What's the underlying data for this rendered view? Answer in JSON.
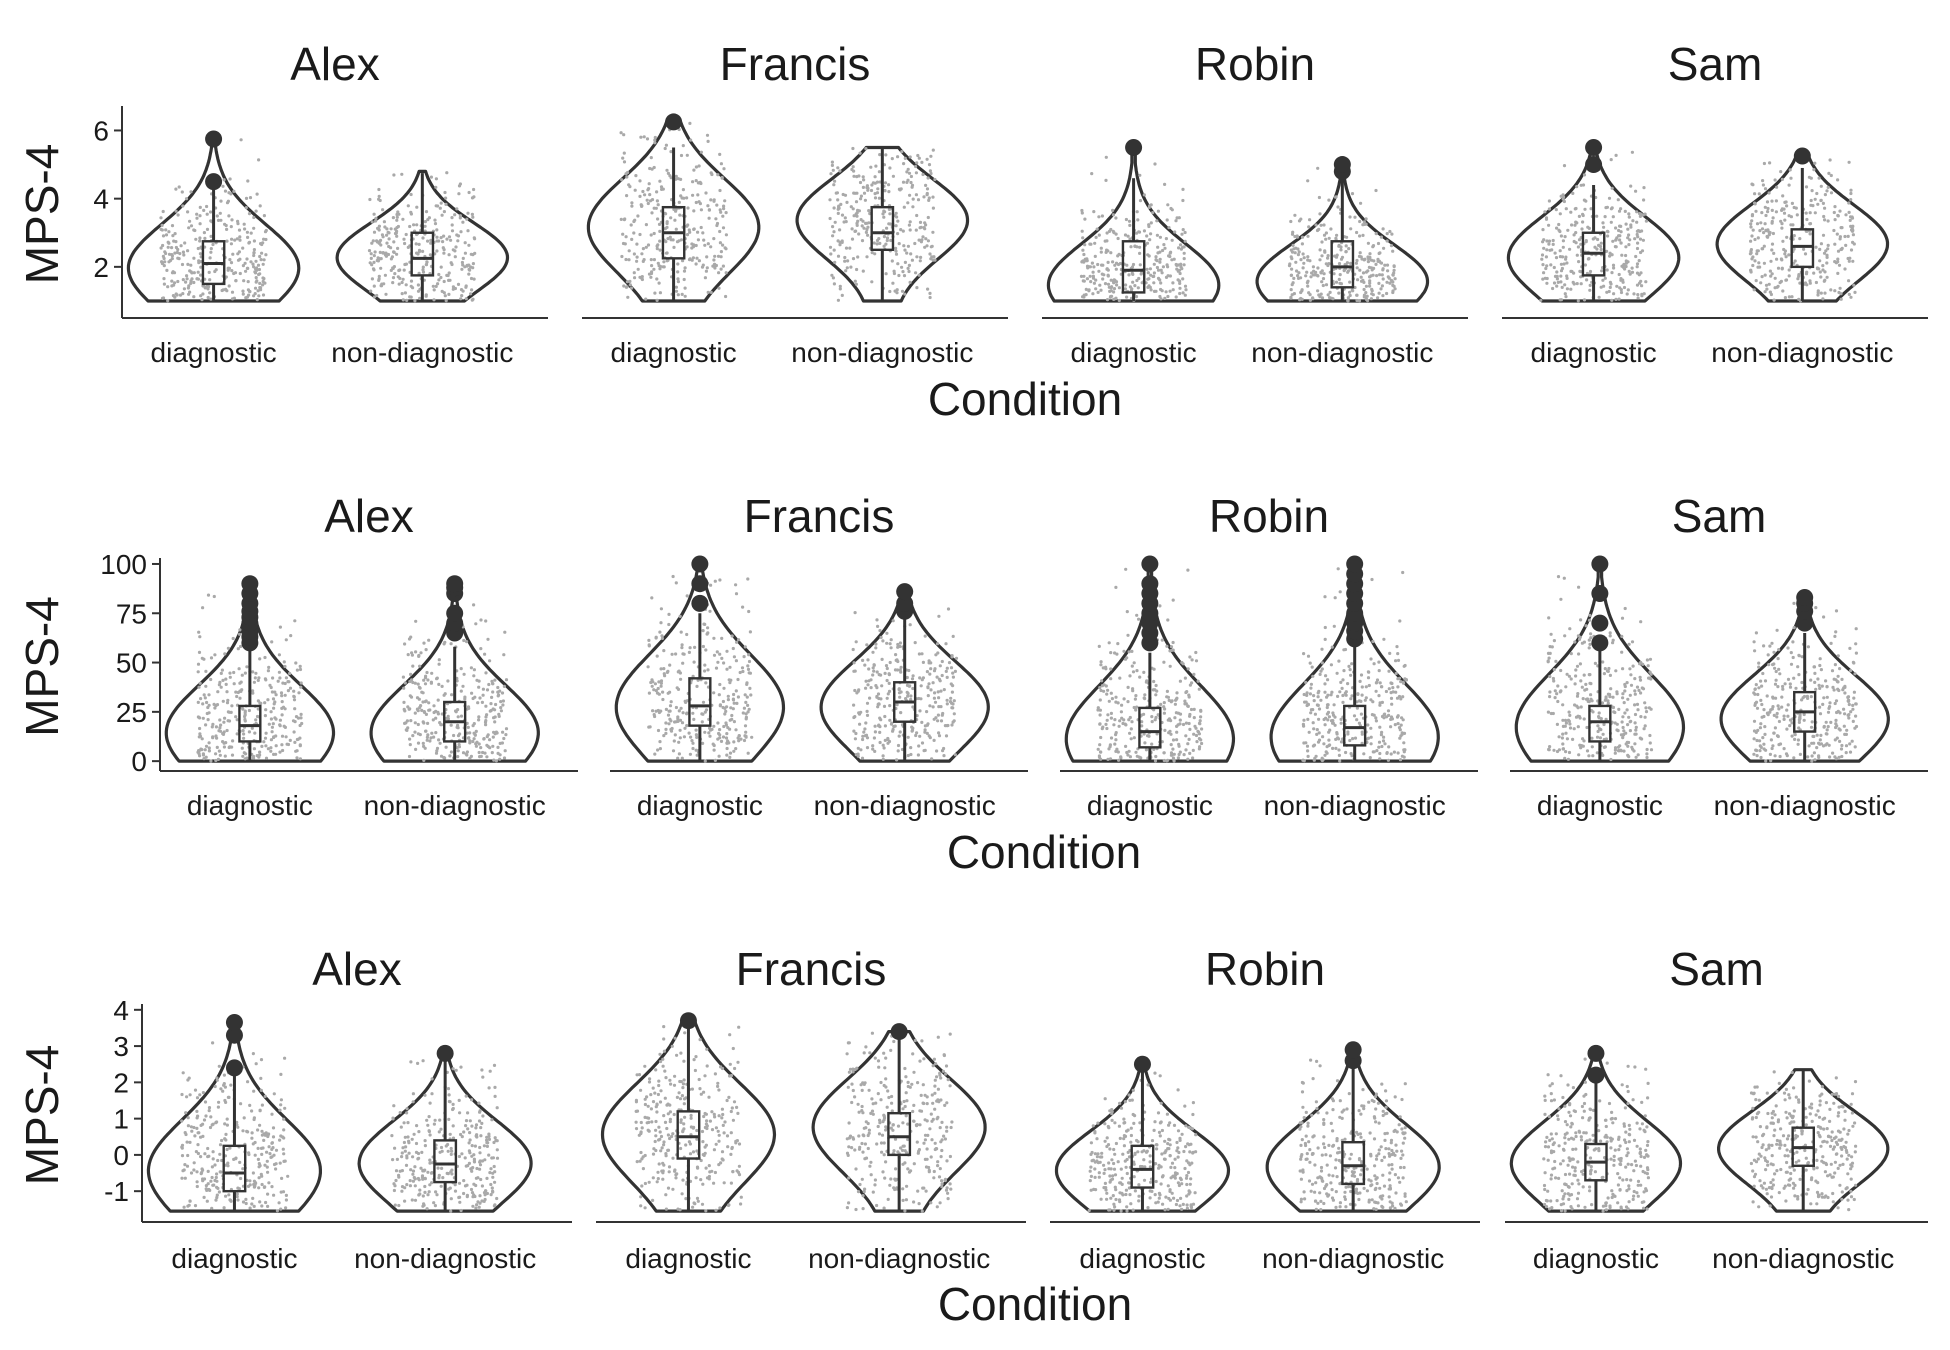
{
  "chart_data": [
    {
      "type": "violin",
      "xlabel": "Condition",
      "ylabel": "MPS-4",
      "ylim": [
        0.5,
        6.6
      ],
      "yticks": [
        2,
        4,
        6
      ],
      "categories": [
        "diagnostic",
        "non-diagnostic"
      ],
      "panels": [
        {
          "title": "Alex",
          "groups": [
            {
              "category": "diagnostic",
              "min": 1,
              "max": 5.8,
              "q1": 1.5,
              "median": 2.1,
              "q3": 2.75,
              "whisker_low": 1,
              "whisker_high": 4.4,
              "mode": 2.0,
              "outliers": [
                4.5,
                5.75
              ]
            },
            {
              "category": "non-diagnostic",
              "min": 1,
              "max": 4.8,
              "q1": 1.75,
              "median": 2.25,
              "q3": 3.0,
              "whisker_low": 1,
              "whisker_high": 4.75,
              "mode": 2.3,
              "outliers": []
            }
          ]
        },
        {
          "title": "Francis",
          "groups": [
            {
              "category": "diagnostic",
              "min": 1,
              "max": 6.3,
              "q1": 2.25,
              "median": 3.0,
              "q3": 3.75,
              "whisker_low": 1,
              "whisker_high": 5.5,
              "mode": 3.2,
              "outliers": [
                6.25
              ]
            },
            {
              "category": "non-diagnostic",
              "min": 1,
              "max": 5.5,
              "q1": 2.5,
              "median": 3.0,
              "q3": 3.75,
              "whisker_low": 1,
              "whisker_high": 5.5,
              "mode": 3.4,
              "outliers": []
            }
          ]
        },
        {
          "title": "Robin",
          "groups": [
            {
              "category": "diagnostic",
              "min": 1,
              "max": 5.5,
              "q1": 1.25,
              "median": 1.9,
              "q3": 2.75,
              "whisker_low": 1,
              "whisker_high": 4.6,
              "mode": 1.5,
              "outliers": [
                5.5
              ]
            },
            {
              "category": "non-diagnostic",
              "min": 1,
              "max": 5.0,
              "q1": 1.4,
              "median": 2.0,
              "q3": 2.75,
              "whisker_low": 1,
              "whisker_high": 4.6,
              "mode": 1.6,
              "outliers": [
                4.8,
                5.0
              ]
            }
          ]
        },
        {
          "title": "Sam",
          "groups": [
            {
              "category": "diagnostic",
              "min": 1,
              "max": 5.5,
              "q1": 1.75,
              "median": 2.4,
              "q3": 3.0,
              "whisker_low": 1,
              "whisker_high": 4.4,
              "mode": 2.3,
              "outliers": [
                5.0,
                5.5
              ]
            },
            {
              "category": "non-diagnostic",
              "min": 1,
              "max": 5.3,
              "q1": 2.0,
              "median": 2.6,
              "q3": 3.1,
              "whisker_low": 1,
              "whisker_high": 4.9,
              "mode": 2.7,
              "outliers": [
                5.25
              ]
            }
          ]
        }
      ]
    },
    {
      "type": "violin",
      "xlabel": "Condition",
      "ylabel": "MPS-4",
      "ylim": [
        -5,
        101
      ],
      "yticks": [
        0,
        25,
        50,
        75,
        100
      ],
      "categories": [
        "diagnostic",
        "non-diagnostic"
      ],
      "panels": [
        {
          "title": "Alex",
          "groups": [
            {
              "category": "diagnostic",
              "min": 0,
              "max": 90,
              "q1": 10,
              "median": 18,
              "q3": 28,
              "whisker_low": 0,
              "whisker_high": 58,
              "mode": 15,
              "outliers": [
                60,
                63,
                66,
                70,
                73,
                76,
                80,
                85,
                90
              ]
            },
            {
              "category": "non-diagnostic",
              "min": 0,
              "max": 90,
              "q1": 10,
              "median": 20,
              "q3": 30,
              "whisker_low": 0,
              "whisker_high": 58,
              "mode": 15,
              "outliers": [
                65,
                70,
                75,
                85,
                88,
                90
              ]
            }
          ]
        },
        {
          "title": "Francis",
          "groups": [
            {
              "category": "diagnostic",
              "min": 0,
              "max": 100,
              "q1": 18,
              "median": 28,
              "q3": 42,
              "whisker_low": 0,
              "whisker_high": 75,
              "mode": 28,
              "outliers": [
                80,
                90,
                100
              ]
            },
            {
              "category": "non-diagnostic",
              "min": 0,
              "max": 87,
              "q1": 20,
              "median": 30,
              "q3": 40,
              "whisker_low": 0,
              "whisker_high": 72,
              "mode": 28,
              "outliers": [
                76,
                80,
                86
              ]
            }
          ]
        },
        {
          "title": "Robin",
          "groups": [
            {
              "category": "diagnostic",
              "min": 0,
              "max": 100,
              "q1": 7,
              "median": 15,
              "q3": 27,
              "whisker_low": 0,
              "whisker_high": 55,
              "mode": 12,
              "outliers": [
                60,
                65,
                70,
                75,
                80,
                85,
                90,
                100
              ]
            },
            {
              "category": "non-diagnostic",
              "min": 0,
              "max": 100,
              "q1": 8,
              "median": 17,
              "q3": 28,
              "whisker_low": 0,
              "whisker_high": 58,
              "mode": 13,
              "outliers": [
                62,
                66,
                70,
                75,
                80,
                85,
                90,
                95,
                100
              ]
            }
          ]
        },
        {
          "title": "Sam",
          "groups": [
            {
              "category": "diagnostic",
              "min": 0,
              "max": 100,
              "q1": 10,
              "median": 20,
              "q3": 28,
              "whisker_low": 0,
              "whisker_high": 58,
              "mode": 18,
              "outliers": [
                60,
                70,
                85,
                100
              ]
            },
            {
              "category": "non-diagnostic",
              "min": 0,
              "max": 83,
              "q1": 15,
              "median": 25,
              "q3": 35,
              "whisker_low": 0,
              "whisker_high": 65,
              "mode": 22,
              "outliers": [
                70,
                76,
                80,
                83
              ]
            }
          ]
        }
      ]
    },
    {
      "type": "violin",
      "xlabel": "Condition",
      "ylabel": "MPS-4",
      "ylim": [
        -1.85,
        4.05
      ],
      "yticks": [
        -1,
        0,
        1,
        2,
        3,
        4
      ],
      "categories": [
        "diagnostic",
        "non-diagnostic"
      ],
      "panels": [
        {
          "title": "Alex",
          "groups": [
            {
              "category": "diagnostic",
              "min": -1.55,
              "max": 3.7,
              "q1": -1.0,
              "median": -0.5,
              "q3": 0.25,
              "whisker_low": -1.55,
              "whisker_high": 2.3,
              "mode": -0.4,
              "outliers": [
                2.4,
                3.3,
                3.65
              ]
            },
            {
              "category": "non-diagnostic",
              "min": -1.55,
              "max": 2.8,
              "q1": -0.75,
              "median": -0.25,
              "q3": 0.4,
              "whisker_low": -1.55,
              "whisker_high": 2.7,
              "mode": -0.2,
              "outliers": [
                2.8
              ]
            }
          ]
        },
        {
          "title": "Francis",
          "groups": [
            {
              "category": "diagnostic",
              "min": -1.55,
              "max": 3.7,
              "q1": -0.1,
              "median": 0.5,
              "q3": 1.2,
              "whisker_low": -1.55,
              "whisker_high": 3.6,
              "mode": 0.6,
              "outliers": [
                3.7
              ]
            },
            {
              "category": "non-diagnostic",
              "min": -1.55,
              "max": 3.4,
              "q1": 0.0,
              "median": 0.5,
              "q3": 1.15,
              "whisker_low": -1.55,
              "whisker_high": 3.3,
              "mode": 0.8,
              "outliers": [
                3.4
              ]
            }
          ]
        },
        {
          "title": "Robin",
          "groups": [
            {
              "category": "diagnostic",
              "min": -1.55,
              "max": 2.5,
              "q1": -0.9,
              "median": -0.4,
              "q3": 0.25,
              "whisker_low": -1.55,
              "whisker_high": 2.4,
              "mode": -0.4,
              "outliers": [
                2.5
              ]
            },
            {
              "category": "non-diagnostic",
              "min": -1.55,
              "max": 2.9,
              "q1": -0.8,
              "median": -0.3,
              "q3": 0.35,
              "whisker_low": -1.55,
              "whisker_high": 2.4,
              "mode": -0.3,
              "outliers": [
                2.6,
                2.9
              ]
            }
          ]
        },
        {
          "title": "Sam",
          "groups": [
            {
              "category": "diagnostic",
              "min": -1.55,
              "max": 2.8,
              "q1": -0.7,
              "median": -0.2,
              "q3": 0.3,
              "whisker_low": -1.55,
              "whisker_high": 2.0,
              "mode": -0.2,
              "outliers": [
                2.2,
                2.8
              ]
            },
            {
              "category": "non-diagnostic",
              "min": -1.55,
              "max": 2.35,
              "q1": -0.3,
              "median": 0.2,
              "q3": 0.75,
              "whisker_low": -1.55,
              "whisker_high": 2.35,
              "mode": 0.2,
              "outliers": []
            }
          ]
        }
      ]
    }
  ]
}
